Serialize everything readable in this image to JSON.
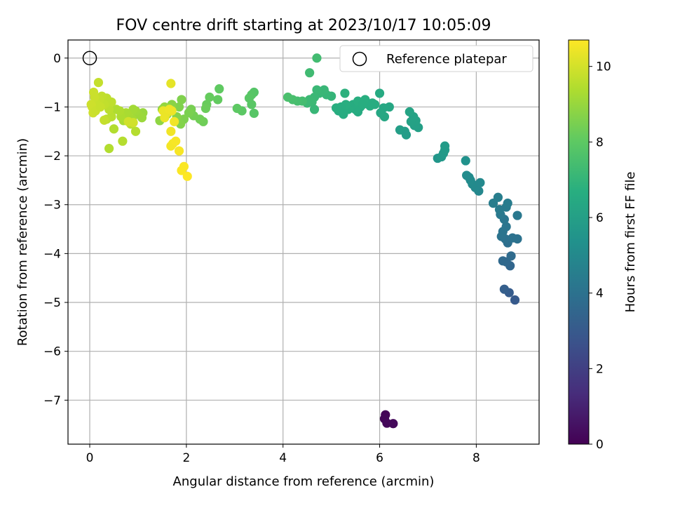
{
  "chart_data": {
    "type": "scatter",
    "title": "FOV centre drift starting at 2023/10/17 10:05:09",
    "xlabel": "Angular distance from reference (arcmin)",
    "ylabel": "Rotation from reference (arcmin)",
    "xlim": [
      -0.45,
      9.3
    ],
    "ylim": [
      -7.9,
      0.37
    ],
    "x_ticks": [
      0,
      2,
      4,
      6,
      8
    ],
    "y_ticks": [
      0,
      -1,
      -2,
      -3,
      -4,
      -5,
      -6,
      -7
    ],
    "grid": true,
    "legend": {
      "position": "top-right",
      "entries": [
        "Reference platepar"
      ]
    },
    "colorbar": {
      "label": "Hours from first FF file",
      "colormap": "viridis",
      "range": [
        0,
        10.7
      ],
      "ticks": [
        0,
        2,
        4,
        6,
        8,
        10
      ]
    },
    "reference_point": {
      "x": 0,
      "y": 0
    },
    "points": [
      {
        "x": 6.12,
        "y": -7.3,
        "c": 0.1
      },
      {
        "x": 6.1,
        "y": -7.38,
        "c": 0.15
      },
      {
        "x": 6.15,
        "y": -7.47,
        "c": 0.2
      },
      {
        "x": 6.28,
        "y": -7.48,
        "c": 0.25
      },
      {
        "x": 8.8,
        "y": -4.95,
        "c": 3.0
      },
      {
        "x": 8.68,
        "y": -4.8,
        "c": 3.1
      },
      {
        "x": 8.58,
        "y": -4.73,
        "c": 3.2
      },
      {
        "x": 8.7,
        "y": -4.25,
        "c": 3.5
      },
      {
        "x": 8.62,
        "y": -4.17,
        "c": 3.6
      },
      {
        "x": 8.55,
        "y": -4.15,
        "c": 3.65
      },
      {
        "x": 8.72,
        "y": -4.05,
        "c": 3.7
      },
      {
        "x": 8.65,
        "y": -3.78,
        "c": 3.9
      },
      {
        "x": 8.6,
        "y": -3.7,
        "c": 3.95
      },
      {
        "x": 8.75,
        "y": -3.68,
        "c": 4.0
      },
      {
        "x": 8.85,
        "y": -3.7,
        "c": 4.0
      },
      {
        "x": 8.52,
        "y": -3.65,
        "c": 4.05
      },
      {
        "x": 8.55,
        "y": -3.55,
        "c": 4.1
      },
      {
        "x": 8.62,
        "y": -3.45,
        "c": 4.15
      },
      {
        "x": 8.58,
        "y": -3.3,
        "c": 4.2
      },
      {
        "x": 8.5,
        "y": -3.2,
        "c": 4.3
      },
      {
        "x": 8.85,
        "y": -3.22,
        "c": 4.25
      },
      {
        "x": 8.62,
        "y": -3.05,
        "c": 4.4
      },
      {
        "x": 8.48,
        "y": -3.1,
        "c": 4.4
      },
      {
        "x": 8.65,
        "y": -2.97,
        "c": 4.45
      },
      {
        "x": 8.35,
        "y": -2.97,
        "c": 4.5
      },
      {
        "x": 8.45,
        "y": -2.85,
        "c": 4.55
      },
      {
        "x": 8.05,
        "y": -2.72,
        "c": 4.9
      },
      {
        "x": 7.98,
        "y": -2.65,
        "c": 5.0
      },
      {
        "x": 7.92,
        "y": -2.58,
        "c": 5.05
      },
      {
        "x": 8.08,
        "y": -2.55,
        "c": 5.0
      },
      {
        "x": 7.88,
        "y": -2.5,
        "c": 5.1
      },
      {
        "x": 7.8,
        "y": -2.4,
        "c": 5.15
      },
      {
        "x": 7.85,
        "y": -2.44,
        "c": 5.1
      },
      {
        "x": 7.78,
        "y": -2.1,
        "c": 5.4
      },
      {
        "x": 7.2,
        "y": -2.05,
        "c": 5.6
      },
      {
        "x": 7.28,
        "y": -2.02,
        "c": 5.65
      },
      {
        "x": 7.32,
        "y": -1.95,
        "c": 5.7
      },
      {
        "x": 7.35,
        "y": -1.88,
        "c": 5.75
      },
      {
        "x": 7.35,
        "y": -1.8,
        "c": 5.8
      },
      {
        "x": 6.8,
        "y": -1.42,
        "c": 6.0
      },
      {
        "x": 6.72,
        "y": -1.38,
        "c": 6.05
      },
      {
        "x": 6.75,
        "y": -1.28,
        "c": 6.1
      },
      {
        "x": 6.65,
        "y": -1.3,
        "c": 6.1
      },
      {
        "x": 6.7,
        "y": -1.2,
        "c": 6.15
      },
      {
        "x": 6.62,
        "y": -1.1,
        "c": 6.2
      },
      {
        "x": 6.52,
        "y": -1.5,
        "c": 5.9
      },
      {
        "x": 6.42,
        "y": -1.47,
        "c": 5.95
      },
      {
        "x": 6.55,
        "y": -1.57,
        "c": 5.85
      },
      {
        "x": 6.2,
        "y": -1.0,
        "c": 6.3
      },
      {
        "x": 6.08,
        "y": -1.02,
        "c": 6.35
      },
      {
        "x": 6.1,
        "y": -1.2,
        "c": 6.3
      },
      {
        "x": 6.02,
        "y": -1.12,
        "c": 6.35
      },
      {
        "x": 6.0,
        "y": -0.72,
        "c": 6.5
      },
      {
        "x": 5.9,
        "y": -0.95,
        "c": 6.6
      },
      {
        "x": 5.8,
        "y": -0.98,
        "c": 6.6
      },
      {
        "x": 5.72,
        "y": -0.9,
        "c": 6.65
      },
      {
        "x": 5.7,
        "y": -0.85,
        "c": 6.7
      },
      {
        "x": 5.6,
        "y": -1.0,
        "c": 6.6
      },
      {
        "x": 5.55,
        "y": -1.1,
        "c": 6.55
      },
      {
        "x": 5.5,
        "y": -1.05,
        "c": 6.6
      },
      {
        "x": 5.45,
        "y": -0.95,
        "c": 6.65
      },
      {
        "x": 5.4,
        "y": -1.0,
        "c": 6.6
      },
      {
        "x": 5.55,
        "y": -0.88,
        "c": 6.7
      },
      {
        "x": 5.35,
        "y": -1.05,
        "c": 6.65
      },
      {
        "x": 5.3,
        "y": -0.95,
        "c": 6.7
      },
      {
        "x": 5.25,
        "y": -1.15,
        "c": 6.6
      },
      {
        "x": 5.2,
        "y": -1.0,
        "c": 6.65
      },
      {
        "x": 5.15,
        "y": -1.08,
        "c": 6.6
      },
      {
        "x": 5.1,
        "y": -1.02,
        "c": 6.7
      },
      {
        "x": 5.28,
        "y": -0.72,
        "c": 6.8
      },
      {
        "x": 5.65,
        "y": -0.95,
        "c": 6.65
      },
      {
        "x": 5.85,
        "y": -0.92,
        "c": 6.6
      },
      {
        "x": 5.0,
        "y": -0.78,
        "c": 7.0
      },
      {
        "x": 4.9,
        "y": -0.75,
        "c": 7.05
      },
      {
        "x": 4.85,
        "y": -0.65,
        "c": 7.1
      },
      {
        "x": 4.75,
        "y": -0.72,
        "c": 7.1
      },
      {
        "x": 4.7,
        "y": -0.65,
        "c": 7.15
      },
      {
        "x": 4.65,
        "y": -0.8,
        "c": 7.15
      },
      {
        "x": 4.6,
        "y": -0.9,
        "c": 7.2
      },
      {
        "x": 4.55,
        "y": -0.85,
        "c": 7.2
      },
      {
        "x": 4.5,
        "y": -0.92,
        "c": 7.2
      },
      {
        "x": 4.65,
        "y": -1.05,
        "c": 7.1
      },
      {
        "x": 4.55,
        "y": -0.3,
        "c": 7.3
      },
      {
        "x": 4.7,
        "y": 0.0,
        "c": 7.35
      },
      {
        "x": 4.4,
        "y": -0.88,
        "c": 7.4
      },
      {
        "x": 4.3,
        "y": -0.88,
        "c": 7.45
      },
      {
        "x": 4.2,
        "y": -0.85,
        "c": 7.5
      },
      {
        "x": 4.1,
        "y": -0.8,
        "c": 7.55
      },
      {
        "x": 3.4,
        "y": -0.7,
        "c": 7.8
      },
      {
        "x": 3.35,
        "y": -0.75,
        "c": 7.85
      },
      {
        "x": 3.3,
        "y": -0.82,
        "c": 7.9
      },
      {
        "x": 3.35,
        "y": -0.95,
        "c": 7.9
      },
      {
        "x": 3.4,
        "y": -1.13,
        "c": 7.85
      },
      {
        "x": 3.15,
        "y": -1.08,
        "c": 7.95
      },
      {
        "x": 3.05,
        "y": -1.03,
        "c": 8.0
      },
      {
        "x": 2.68,
        "y": -0.63,
        "c": 8.05
      },
      {
        "x": 2.65,
        "y": -0.85,
        "c": 8.1
      },
      {
        "x": 2.48,
        "y": -0.8,
        "c": 8.15
      },
      {
        "x": 2.42,
        "y": -0.95,
        "c": 8.2
      },
      {
        "x": 2.4,
        "y": -1.03,
        "c": 8.25
      },
      {
        "x": 2.35,
        "y": -1.3,
        "c": 8.3
      },
      {
        "x": 2.28,
        "y": -1.25,
        "c": 8.35
      },
      {
        "x": 2.15,
        "y": -1.18,
        "c": 8.4
      },
      {
        "x": 2.1,
        "y": -1.05,
        "c": 8.45
      },
      {
        "x": 2.05,
        "y": -1.12,
        "c": 8.5
      },
      {
        "x": 1.95,
        "y": -1.25,
        "c": 8.55
      },
      {
        "x": 1.9,
        "y": -0.85,
        "c": 8.6
      },
      {
        "x": 1.85,
        "y": -1.0,
        "c": 8.6
      },
      {
        "x": 1.88,
        "y": -1.35,
        "c": 8.65
      },
      {
        "x": 1.8,
        "y": -1.2,
        "c": 8.7
      },
      {
        "x": 1.7,
        "y": -0.95,
        "c": 8.75
      },
      {
        "x": 1.6,
        "y": -1.15,
        "c": 8.8
      },
      {
        "x": 1.45,
        "y": -1.28,
        "c": 8.85
      },
      {
        "x": 1.5,
        "y": -1.05,
        "c": 8.9
      },
      {
        "x": 1.55,
        "y": -1.0,
        "c": 8.95
      },
      {
        "x": 1.1,
        "y": -1.12,
        "c": 9.0
      },
      {
        "x": 1.08,
        "y": -1.22,
        "c": 9.05
      },
      {
        "x": 1.0,
        "y": -1.15,
        "c": 9.1
      },
      {
        "x": 0.95,
        "y": -1.08,
        "c": 9.15
      },
      {
        "x": 0.9,
        "y": -1.05,
        "c": 9.2
      },
      {
        "x": 0.88,
        "y": -1.25,
        "c": 9.2
      },
      {
        "x": 0.8,
        "y": -1.18,
        "c": 9.25
      },
      {
        "x": 0.75,
        "y": -1.12,
        "c": 9.3
      },
      {
        "x": 0.7,
        "y": -1.28,
        "c": 9.3
      },
      {
        "x": 0.65,
        "y": -1.2,
        "c": 9.35
      },
      {
        "x": 0.62,
        "y": -1.08,
        "c": 9.4
      },
      {
        "x": 0.55,
        "y": -1.05,
        "c": 9.4
      },
      {
        "x": 0.5,
        "y": -1.45,
        "c": 9.45
      },
      {
        "x": 0.4,
        "y": -1.85,
        "c": 9.45
      },
      {
        "x": 0.68,
        "y": -1.7,
        "c": 9.5
      },
      {
        "x": 0.95,
        "y": -1.5,
        "c": 9.5
      },
      {
        "x": 0.85,
        "y": -1.35,
        "c": 9.55
      },
      {
        "x": 0.45,
        "y": -1.2,
        "c": 9.55
      },
      {
        "x": 0.35,
        "y": -1.25,
        "c": 9.6
      },
      {
        "x": 0.4,
        "y": -1.05,
        "c": 9.6
      },
      {
        "x": 0.45,
        "y": -0.9,
        "c": 9.65
      },
      {
        "x": 0.35,
        "y": -0.82,
        "c": 9.65
      },
      {
        "x": 0.3,
        "y": -0.95,
        "c": 9.7
      },
      {
        "x": 0.25,
        "y": -0.78,
        "c": 9.7
      },
      {
        "x": 0.2,
        "y": -0.85,
        "c": 9.75
      },
      {
        "x": 0.18,
        "y": -0.5,
        "c": 9.75
      },
      {
        "x": 0.15,
        "y": -0.95,
        "c": 9.8
      },
      {
        "x": 0.12,
        "y": -1.05,
        "c": 9.8
      },
      {
        "x": 0.1,
        "y": -0.8,
        "c": 9.85
      },
      {
        "x": 0.08,
        "y": -0.7,
        "c": 9.85
      },
      {
        "x": 0.05,
        "y": -1.0,
        "c": 9.9
      },
      {
        "x": 0.03,
        "y": -0.95,
        "c": 9.9
      },
      {
        "x": 0.07,
        "y": -1.12,
        "c": 9.9
      },
      {
        "x": 0.12,
        "y": -1.08,
        "c": 9.85
      },
      {
        "x": 0.8,
        "y": -1.3,
        "c": 9.95
      },
      {
        "x": 0.9,
        "y": -1.32,
        "c": 9.95
      },
      {
        "x": 0.22,
        "y": -1.0,
        "c": 9.8
      },
      {
        "x": 0.3,
        "y": -1.27,
        "c": 9.75
      },
      {
        "x": 1.68,
        "y": -0.52,
        "c": 10.3
      },
      {
        "x": 1.6,
        "y": -1.12,
        "c": 10.35
      },
      {
        "x": 1.52,
        "y": -1.08,
        "c": 10.4
      },
      {
        "x": 1.55,
        "y": -1.22,
        "c": 10.4
      },
      {
        "x": 1.65,
        "y": -1.05,
        "c": 10.45
      },
      {
        "x": 1.7,
        "y": -1.08,
        "c": 10.45
      },
      {
        "x": 1.75,
        "y": -1.3,
        "c": 10.5
      },
      {
        "x": 1.68,
        "y": -1.5,
        "c": 10.5
      },
      {
        "x": 1.72,
        "y": -1.75,
        "c": 10.55
      },
      {
        "x": 1.68,
        "y": -1.8,
        "c": 10.55
      },
      {
        "x": 1.78,
        "y": -1.7,
        "c": 10.6
      },
      {
        "x": 1.85,
        "y": -1.9,
        "c": 10.6
      },
      {
        "x": 1.95,
        "y": -2.22,
        "c": 10.65
      },
      {
        "x": 1.9,
        "y": -2.3,
        "c": 10.65
      },
      {
        "x": 2.02,
        "y": -2.42,
        "c": 10.7
      }
    ]
  }
}
